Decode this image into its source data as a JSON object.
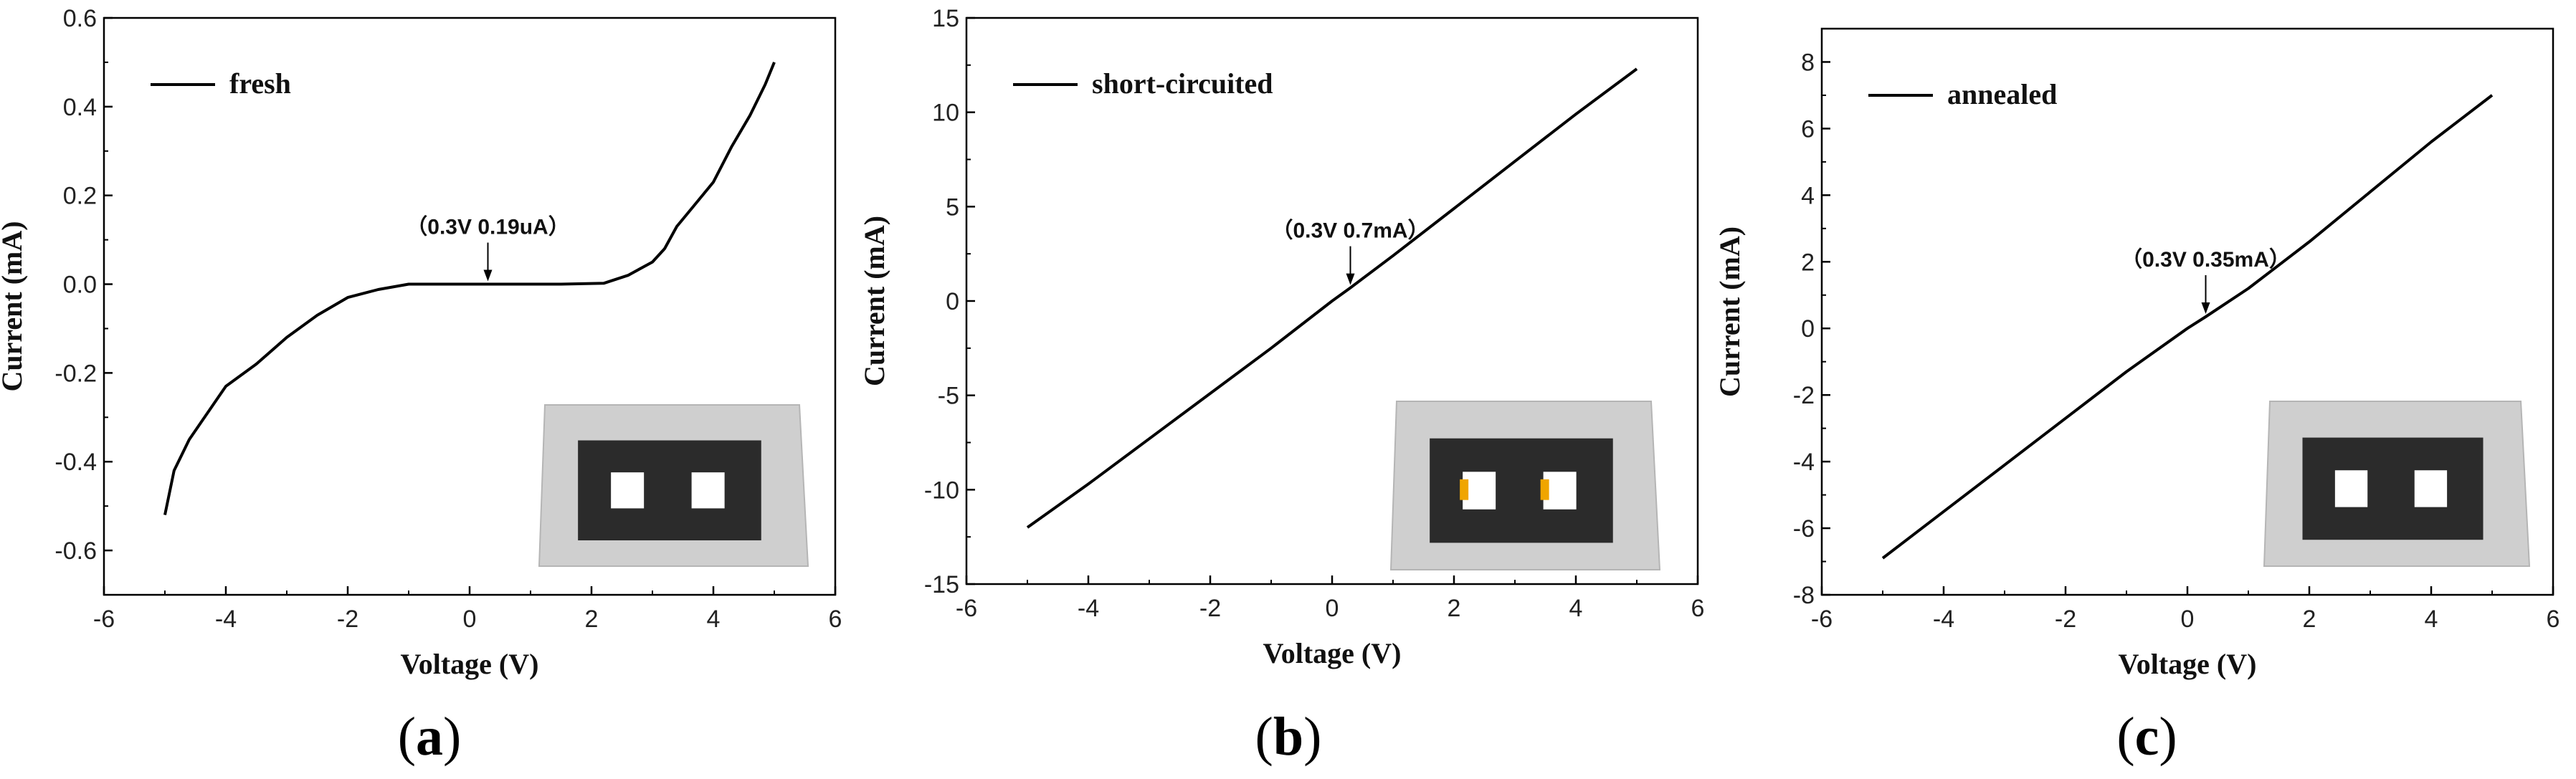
{
  "chart_data": [
    {
      "type": "line",
      "panel_label": "a",
      "xlabel": "Voltage (V)",
      "ylabel": "Current (mA)",
      "xlim": [
        -6,
        6
      ],
      "ylim": [
        -0.7,
        0.6
      ],
      "xticks": [
        -6,
        -4,
        -2,
        0,
        2,
        4,
        6
      ],
      "yticks": [
        -0.6,
        -0.4,
        -0.2,
        0.0,
        0.2,
        0.4,
        0.6
      ],
      "ytick_labels": [
        "-0.6",
        "-0.4",
        "-0.2",
        "0.0",
        "0.2",
        "0.4",
        "0.6"
      ],
      "legend": "top-left",
      "series": [
        {
          "name": "fresh",
          "x": [
            -5.0,
            -4.85,
            -4.6,
            -4.3,
            -4.0,
            -3.5,
            -3.0,
            -2.5,
            -2.0,
            -1.5,
            -1.0,
            -0.5,
            0.0,
            0.5,
            1.0,
            1.5,
            2.2,
            2.6,
            3.0,
            3.2,
            3.4,
            3.7,
            4.0,
            4.3,
            4.6,
            4.85,
            5.0
          ],
          "y": [
            -0.52,
            -0.42,
            -0.35,
            -0.29,
            -0.23,
            -0.18,
            -0.12,
            -0.07,
            -0.03,
            -0.012,
            0.0,
            0.0,
            0.0,
            0.0,
            0.0,
            0.0,
            0.002,
            0.02,
            0.05,
            0.08,
            0.13,
            0.18,
            0.23,
            0.31,
            0.38,
            0.45,
            0.5
          ]
        }
      ],
      "annotation": {
        "text": "（0.3V 0.19uA）",
        "x": 0.3,
        "y": 0.0
      },
      "inset": {
        "description": "electrode",
        "fill_color": "#2b2b2b",
        "gap_color": "#ffffff",
        "marks": false
      }
    },
    {
      "type": "line",
      "panel_label": "b",
      "xlabel": "Voltage (V)",
      "ylabel": "Current (mA)",
      "xlim": [
        -6,
        6
      ],
      "ylim": [
        -15,
        15
      ],
      "xticks": [
        -6,
        -4,
        -2,
        0,
        2,
        4,
        6
      ],
      "yticks": [
        -15,
        -10,
        -5,
        0,
        5,
        10,
        15
      ],
      "ytick_labels": [
        "-15",
        "-10",
        "-5",
        "0",
        "5",
        "10",
        "15"
      ],
      "legend": "top-left",
      "series": [
        {
          "name": "short-circuited",
          "x": [
            -5.0,
            -4.0,
            -3.0,
            -2.0,
            -1.0,
            0.0,
            0.3,
            1.0,
            2.0,
            3.0,
            4.0,
            5.0
          ],
          "y": [
            -12.0,
            -9.7,
            -7.3,
            -4.9,
            -2.5,
            0.0,
            0.7,
            2.4,
            4.9,
            7.4,
            9.9,
            12.3
          ]
        }
      ],
      "annotation": {
        "text": "（0.3V 0.7mA）",
        "x": 0.3,
        "y": 0.7
      },
      "inset": {
        "description": "electrode",
        "fill_color": "#2b2b2b",
        "gap_color": "#ffffff",
        "marks": true,
        "mark_color": "#f0a500"
      }
    },
    {
      "type": "line",
      "panel_label": "c",
      "xlabel": "Voltage (V)",
      "ylabel": "Current (mA)",
      "xlim": [
        -6,
        6
      ],
      "ylim": [
        -8,
        9
      ],
      "xticks": [
        -6,
        -4,
        -2,
        0,
        2,
        4,
        6
      ],
      "yticks": [
        -8,
        -6,
        -4,
        -2,
        0,
        2,
        4,
        6,
        8
      ],
      "ytick_labels": [
        "-8",
        "-6",
        "-4",
        "-2",
        "0",
        "2",
        "4",
        "6",
        "8"
      ],
      "legend": "top-left",
      "series": [
        {
          "name": "annealed",
          "x": [
            -5.0,
            -4.0,
            -3.0,
            -2.0,
            -1.0,
            0.0,
            0.3,
            1.0,
            2.0,
            3.0,
            4.0,
            5.0
          ],
          "y": [
            -6.9,
            -5.5,
            -4.1,
            -2.7,
            -1.3,
            0.0,
            0.35,
            1.2,
            2.6,
            4.1,
            5.6,
            7.0
          ]
        }
      ],
      "annotation": {
        "text": "（0.3V 0.35mA）",
        "x": 0.3,
        "y": 0.35
      },
      "inset": {
        "description": "electrode",
        "fill_color": "#2b2b2b",
        "gap_color": "#ffffff",
        "marks": false
      }
    }
  ],
  "captions": [
    "a",
    "b",
    "c"
  ]
}
